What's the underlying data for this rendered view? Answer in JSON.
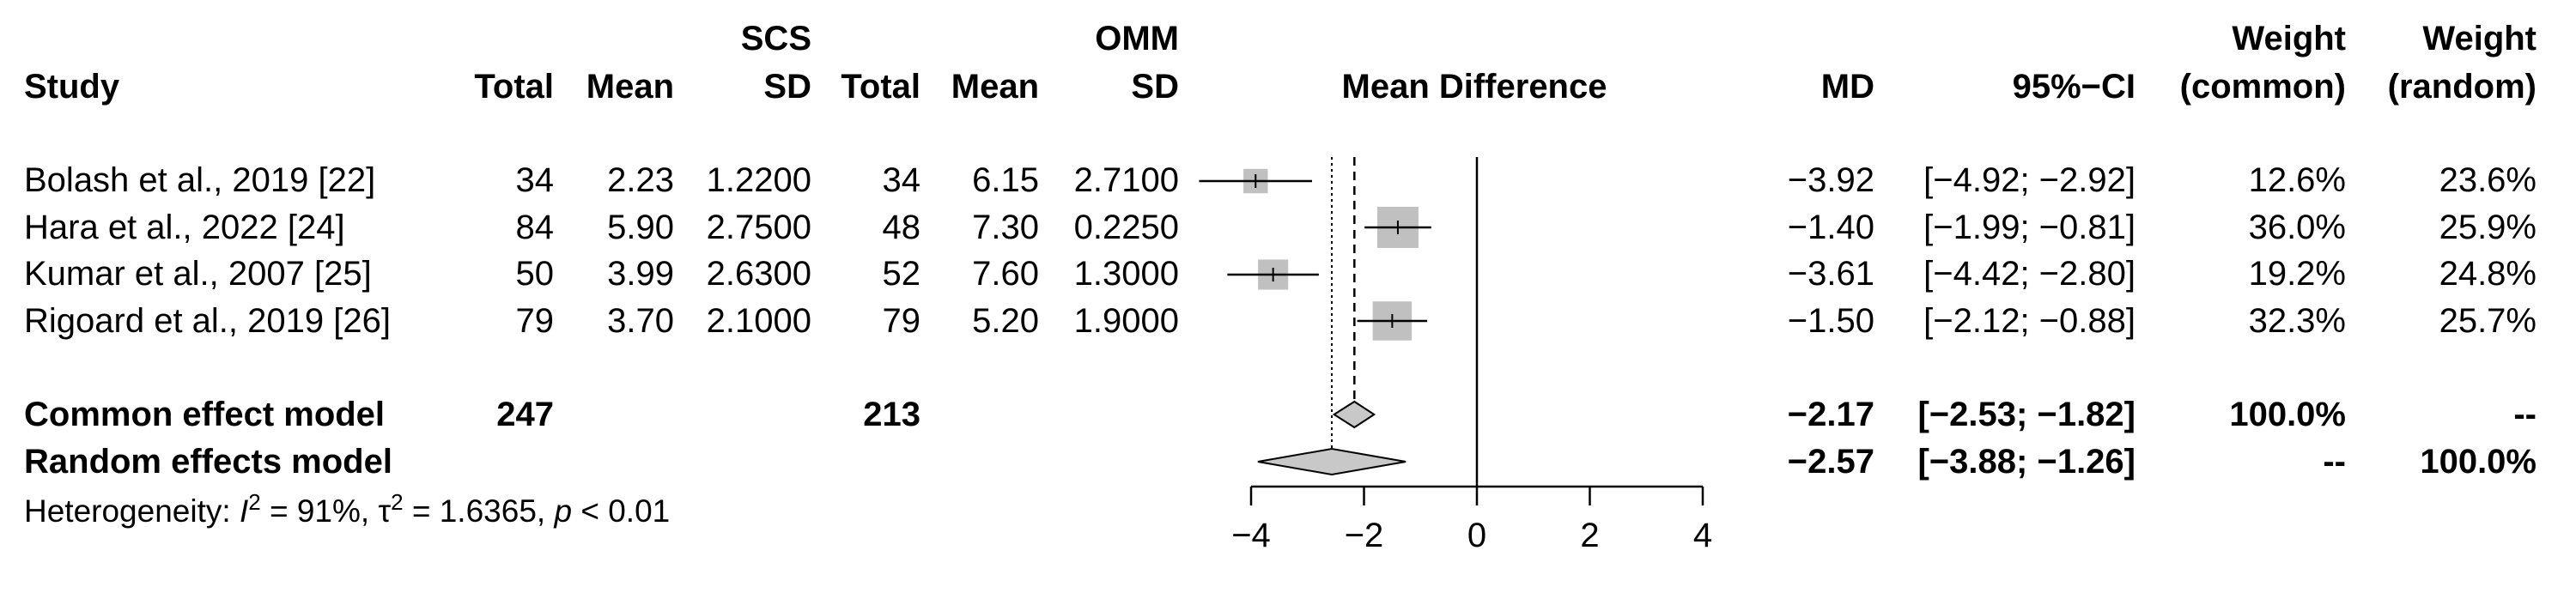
{
  "header": {
    "group1": "SCS",
    "group2": "OMM",
    "study": "Study",
    "total": "Total",
    "mean": "Mean",
    "sd": "SD",
    "plot": "Mean Difference",
    "md": "MD",
    "ci": "95%−CI",
    "weight": "Weight",
    "weight_common": "(common)",
    "weight_random": "(random)"
  },
  "studies": [
    {
      "study": "Bolash et al., 2019 [22]",
      "total1": "34",
      "mean1": "2.23",
      "sd1": "1.2200",
      "total2": "34",
      "mean2": "6.15",
      "sd2": "2.7100",
      "md": "−3.92",
      "ci": "[−4.92; −2.92]",
      "w_common": "12.6%",
      "w_random": "23.6%"
    },
    {
      "study": "Hara et al., 2022 [24]",
      "total1": "84",
      "mean1": "5.90",
      "sd1": "2.7500",
      "total2": "48",
      "mean2": "7.30",
      "sd2": "0.2250",
      "md": "−1.40",
      "ci": "[−1.99; −0.81]",
      "w_common": "36.0%",
      "w_random": "25.9%"
    },
    {
      "study": "Kumar et al., 2007 [25]",
      "total1": "50",
      "mean1": "3.99",
      "sd1": "2.6300",
      "total2": "52",
      "mean2": "7.60",
      "sd2": "1.3000",
      "md": "−3.61",
      "ci": "[−4.42; −2.80]",
      "w_common": "19.2%",
      "w_random": "24.8%"
    },
    {
      "study": "Rigoard et al., 2019 [26]",
      "total1": "79",
      "mean1": "3.70",
      "sd1": "2.1000",
      "total2": "79",
      "mean2": "5.20",
      "sd2": "1.9000",
      "md": "−1.50",
      "ci": "[−2.12; −0.88]",
      "w_common": "32.3%",
      "w_random": "25.7%"
    }
  ],
  "pooled": [
    {
      "label": "Common effect model",
      "total1": "247",
      "total2": "213",
      "md": "−2.17",
      "ci": "[−2.53; −1.82]",
      "w_common": "100.0%",
      "w_random": "--"
    },
    {
      "label": "Random effects model",
      "total1": "",
      "total2": "",
      "md": "−2.57",
      "ci": "[−3.88; −1.26]",
      "w_common": "--",
      "w_random": "100.0%"
    }
  ],
  "heterogeneity": {
    "prefix": "Heterogeneity: ",
    "i2_sym": "I",
    "i2_val": " = 91%, ",
    "tau2_sym": "τ",
    "tau2_val": " = 1.6365, ",
    "p_sym": "p",
    "p_val": " < 0.01",
    "sup": "2"
  },
  "chart_data": {
    "type": "forest",
    "xlabel": "",
    "xlim": [
      -4,
      4
    ],
    "xticks": [
      -4,
      -2,
      0,
      2,
      4
    ],
    "xtick_labels": [
      "−4",
      "−2",
      "0",
      "2",
      "4"
    ],
    "null_line": 0,
    "studies": [
      {
        "name": "Bolash et al., 2019 [22]",
        "md": -3.92,
        "lower": -4.92,
        "upper": -2.92,
        "weight_common": 12.6,
        "weight_random": 23.6
      },
      {
        "name": "Hara et al., 2022 [24]",
        "md": -1.4,
        "lower": -1.99,
        "upper": -0.81,
        "weight_common": 36.0,
        "weight_random": 25.9
      },
      {
        "name": "Kumar et al., 2007 [25]",
        "md": -3.61,
        "lower": -4.42,
        "upper": -2.8,
        "weight_common": 19.2,
        "weight_random": 24.8
      },
      {
        "name": "Rigoard et al., 2019 [26]",
        "md": -1.5,
        "lower": -2.12,
        "upper": -0.88,
        "weight_common": 32.3,
        "weight_random": 25.7
      }
    ],
    "common": {
      "md": -2.17,
      "lower": -2.53,
      "upper": -1.82
    },
    "random": {
      "md": -2.57,
      "lower": -3.88,
      "upper": -1.26
    },
    "colors": {
      "box": "#c0c0c0",
      "diamond": "#c8c8c8",
      "line": "#000000"
    }
  }
}
